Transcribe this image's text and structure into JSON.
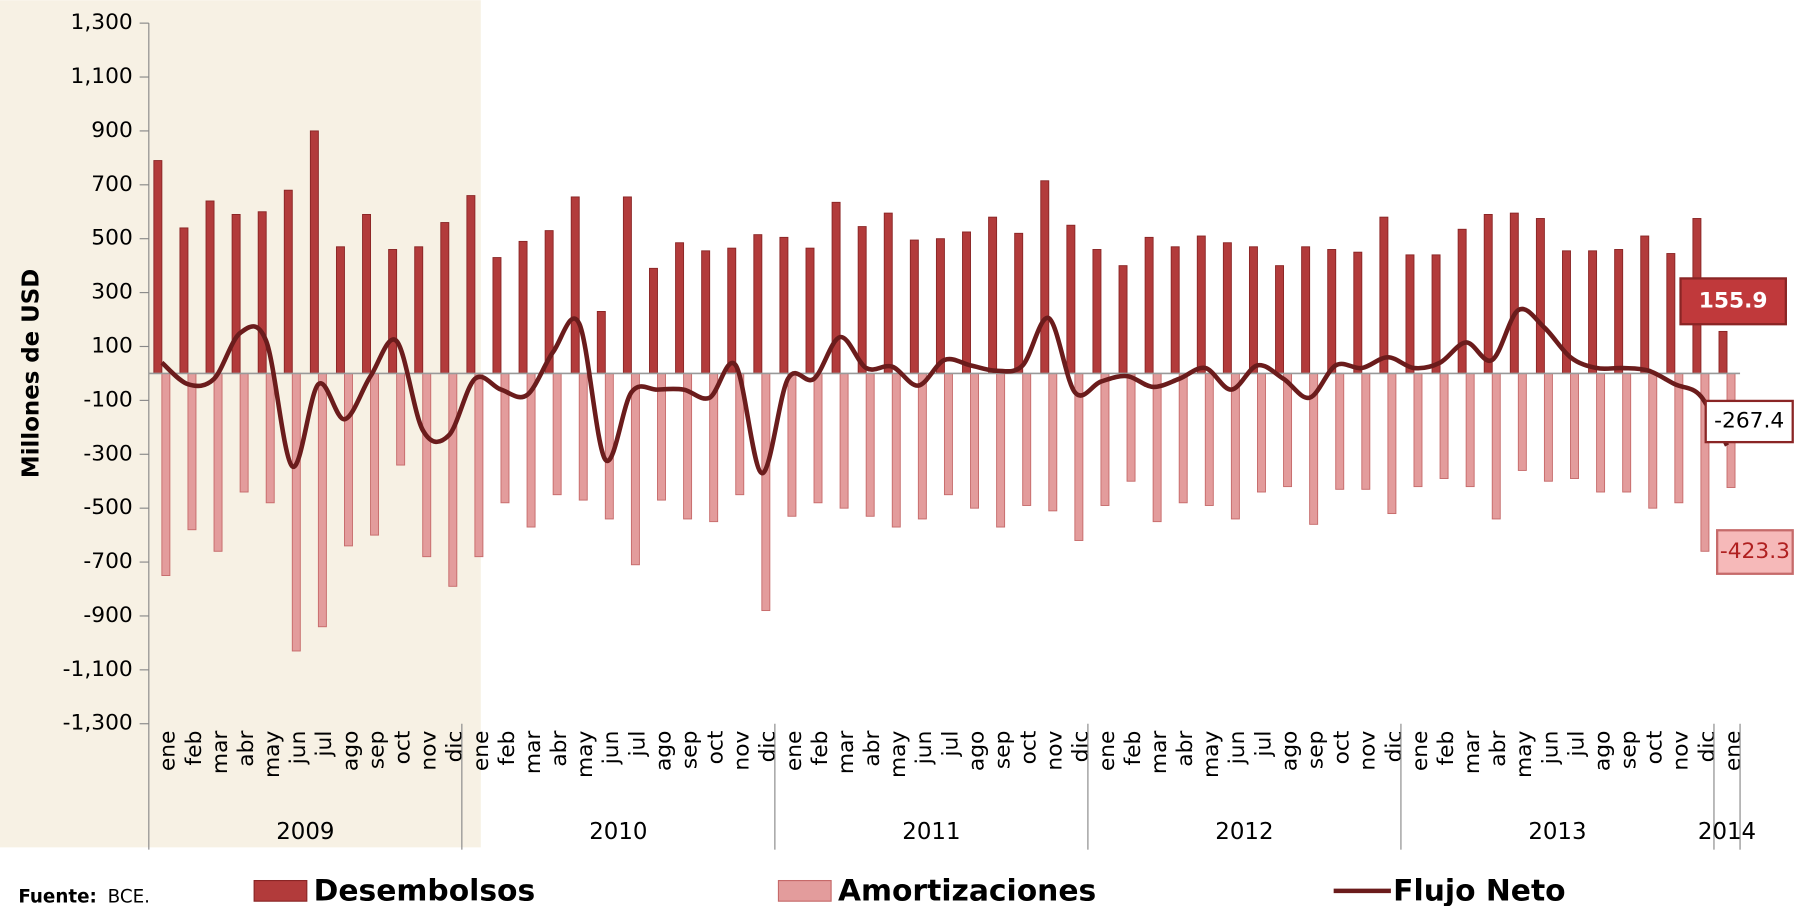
{
  "chart_data": {
    "type": "bar-line",
    "y_label": "Millones de USD",
    "source_label": "Fuente:",
    "source": "BCE.",
    "years": [
      {
        "label": "2009",
        "months": [
          "ene",
          "feb",
          "mar",
          "abr",
          "may",
          "jun",
          "jul",
          "ago",
          "sep",
          "oct",
          "nov",
          "dic"
        ]
      },
      {
        "label": "2010",
        "months": [
          "ene",
          "feb",
          "mar",
          "abr",
          "may",
          "jun",
          "jul",
          "ago",
          "sep",
          "oct",
          "nov",
          "dic"
        ]
      },
      {
        "label": "2011",
        "months": [
          "ene",
          "feb",
          "mar",
          "abr",
          "may",
          "jun",
          "jul",
          "ago",
          "sep",
          "oct",
          "nov",
          "dic"
        ]
      },
      {
        "label": "2012",
        "months": [
          "ene",
          "feb",
          "mar",
          "abr",
          "may",
          "jun",
          "jul",
          "ago",
          "sep",
          "oct",
          "nov",
          "dic"
        ]
      },
      {
        "label": "2013",
        "months": [
          "ene",
          "feb",
          "mar",
          "abr",
          "may",
          "jun",
          "jul",
          "ago",
          "sep",
          "oct",
          "nov",
          "dic"
        ]
      },
      {
        "label": "2014",
        "months": [
          "ene"
        ]
      }
    ],
    "series": [
      {
        "name": "Desembolsos",
        "type": "bar",
        "color": "#b23b3b",
        "values": [
          790,
          540,
          640,
          590,
          600,
          680,
          900,
          470,
          590,
          460,
          470,
          560,
          660,
          430,
          490,
          530,
          655,
          230,
          655,
          390,
          485,
          455,
          465,
          515,
          505,
          465,
          635,
          545,
          595,
          495,
          500,
          525,
          580,
          520,
          715,
          550,
          460,
          400,
          505,
          470,
          510,
          485,
          470,
          400,
          470,
          460,
          450,
          580,
          440,
          440,
          535,
          590,
          595,
          575,
          455,
          455,
          460,
          510,
          445,
          575,
          155.9
        ]
      },
      {
        "name": "Amortizaciones",
        "type": "bar",
        "color": "#e39c9c",
        "values": [
          -750,
          -580,
          -660,
          -440,
          -480,
          -1030,
          -940,
          -640,
          -600,
          -340,
          -680,
          -790,
          -680,
          -480,
          -570,
          -450,
          -470,
          -540,
          -710,
          -470,
          -540,
          -550,
          -450,
          -880,
          -530,
          -480,
          -500,
          -530,
          -570,
          -540,
          -450,
          -500,
          -570,
          -490,
          -510,
          -620,
          -490,
          -400,
          -550,
          -480,
          -490,
          -540,
          -440,
          -420,
          -560,
          -430,
          -430,
          -520,
          -420,
          -390,
          -420,
          -540,
          -360,
          -400,
          -390,
          -440,
          -440,
          -500,
          -480,
          -660,
          -423.3
        ]
      },
      {
        "name": "Flujo Neto",
        "type": "line",
        "color": "#6b1c1c",
        "values": [
          40,
          -40,
          -20,
          150,
          120,
          -345,
          -40,
          -170,
          -10,
          120,
          -210,
          -230,
          -20,
          -60,
          -80,
          80,
          185,
          -320,
          -70,
          -60,
          -60,
          -90,
          30,
          -370,
          -20,
          -20,
          135,
          20,
          25,
          -45,
          50,
          30,
          10,
          30,
          205,
          -70,
          -30,
          -10,
          -50,
          -20,
          20,
          -60,
          30,
          -20,
          -90,
          30,
          20,
          60,
          20,
          40,
          115,
          50,
          235,
          170,
          60,
          20,
          20,
          10,
          -40,
          -85,
          -267.4
        ]
      }
    ],
    "ylim": [
      -1300,
      1300
    ],
    "yticks": [
      {
        "value": -1300,
        "label": "-1,300"
      },
      {
        "value": -1100,
        "label": "-1,100"
      },
      -900,
      -700,
      -500,
      -300,
      -100,
      100,
      300,
      500,
      700,
      900,
      {
        "value": 1100,
        "label": "1,100"
      },
      {
        "value": 1300,
        "label": "1,300"
      }
    ]
  }
}
